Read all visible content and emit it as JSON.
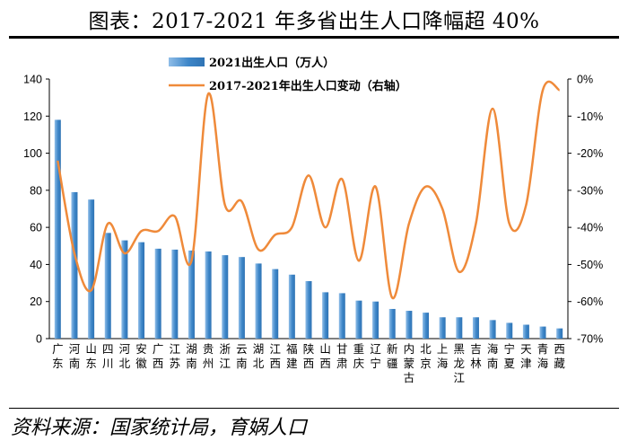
{
  "header": {
    "title": "图表：2017-2021 年多省出生人口降幅超 40%"
  },
  "footer": {
    "source": "资料来源：国家统计局，育娲人口"
  },
  "colors": {
    "bar": "#3d86c8",
    "bar_light": "#8fbde8",
    "line": "#ef8a3a",
    "axis": "#000000"
  },
  "chart_data": {
    "type": "bar+line",
    "title": "图表：2017-2021 年多省出生人口降幅超 40%",
    "categories": [
      "广东",
      "河南",
      "山东",
      "四川",
      "河北",
      "安徽",
      "广西",
      "江苏",
      "湖南",
      "贵州",
      "浙江",
      "云南",
      "湖北",
      "江西",
      "福建",
      "陕西",
      "山西",
      "甘肃",
      "重庆",
      "辽宁",
      "新疆",
      "内蒙古",
      "北京",
      "上海",
      "黑龙江",
      "吉林",
      "海南",
      "宁夏",
      "天津",
      "青海",
      "西藏"
    ],
    "series": [
      {
        "name": "2021出生人口（万人）",
        "type": "bar",
        "axis": "left",
        "values": [
          118.0,
          79.0,
          75.0,
          57.0,
          53.0,
          52.0,
          48.5,
          48.0,
          47.5,
          47.0,
          45.0,
          44.0,
          40.5,
          37.5,
          34.5,
          31.0,
          25.0,
          24.5,
          20.5,
          20.0,
          16.0,
          15.0,
          14.0,
          11.5,
          11.5,
          11.5,
          10.0,
          8.5,
          7.5,
          6.5,
          5.5
        ]
      },
      {
        "name": "2017-2021年出生人口变动（右轴）",
        "type": "line",
        "axis": "right",
        "values": [
          -22,
          -47,
          -57,
          -39,
          -47,
          -41,
          -41,
          -37,
          -49,
          -4,
          -34,
          -33,
          -46,
          -42,
          -40,
          -26,
          -40,
          -27,
          -49,
          -29,
          -59,
          -39,
          -29,
          -35,
          -52,
          -39,
          -8,
          -39,
          -34,
          -3,
          -3
        ]
      }
    ],
    "y_left": {
      "min": 0,
      "max": 140,
      "ticks": [
        "0",
        "20",
        "40",
        "60",
        "80",
        "100",
        "120",
        "140"
      ]
    },
    "y_right": {
      "min": -70,
      "max": 0,
      "ticks": [
        "0%",
        "-10%",
        "-20%",
        "-30%",
        "-40%",
        "-50%",
        "-60%",
        "-70%"
      ]
    },
    "legend": {
      "position": "top-center",
      "entries": [
        "2021出生人口（万人）",
        "2017-2021年出生人口变动（右轴）"
      ]
    }
  }
}
